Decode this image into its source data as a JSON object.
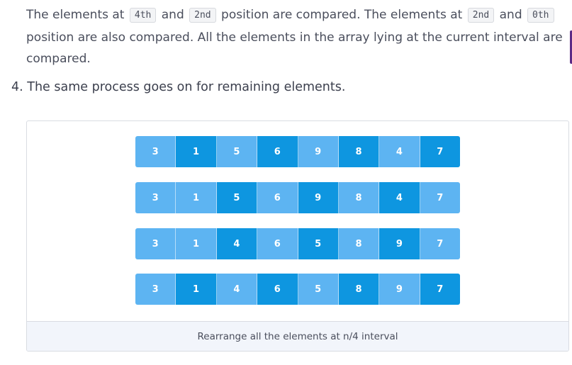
{
  "paragraph": {
    "text1": "The elements at",
    "code1": "4th",
    "text2": "and",
    "code2": "2nd",
    "text3": "position are compared. The elements at",
    "code3": "2nd",
    "text4": "and",
    "code4": "0th",
    "text5": "position are also compared. All the elements in the array lying at the current interval are compared."
  },
  "step": {
    "text": "4. The same process goes on for remaining elements."
  },
  "figure": {
    "caption": "Rearrange all the elements at n/4 interval",
    "colors": {
      "light": "#5db4f2",
      "dark": "#0e96e0"
    },
    "rows": [
      {
        "values": [
          "3",
          "1",
          "5",
          "6",
          "9",
          "8",
          "4",
          "7"
        ],
        "highlight": [
          "light",
          "dark",
          "light",
          "dark",
          "light",
          "dark",
          "light",
          "dark"
        ]
      },
      {
        "values": [
          "3",
          "1",
          "5",
          "6",
          "9",
          "8",
          "4",
          "7"
        ],
        "highlight": [
          "light",
          "light",
          "dark",
          "light",
          "dark",
          "light",
          "dark",
          "light"
        ]
      },
      {
        "values": [
          "3",
          "1",
          "4",
          "6",
          "5",
          "8",
          "9",
          "7"
        ],
        "highlight": [
          "light",
          "light",
          "dark",
          "light",
          "dark",
          "light",
          "dark",
          "light"
        ]
      },
      {
        "values": [
          "3",
          "1",
          "4",
          "6",
          "5",
          "8",
          "9",
          "7"
        ],
        "highlight": [
          "light",
          "dark",
          "light",
          "dark",
          "light",
          "dark",
          "light",
          "dark"
        ]
      }
    ]
  }
}
